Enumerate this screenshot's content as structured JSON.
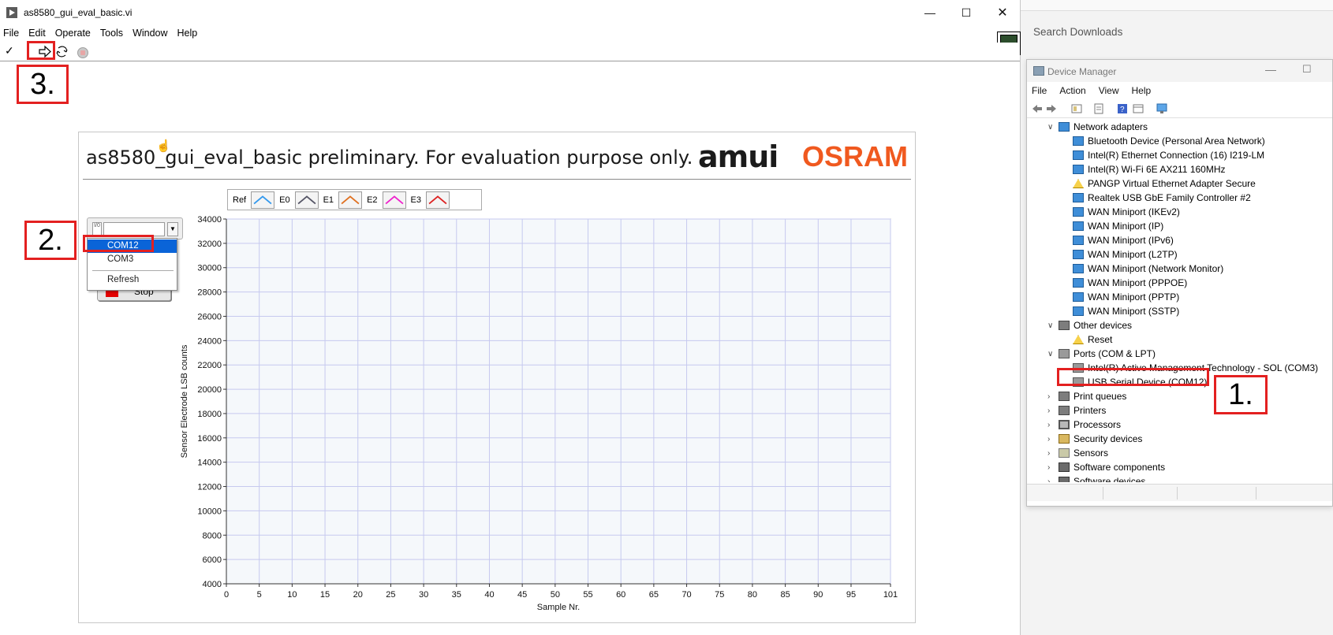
{
  "labview": {
    "title": "as8580_gui_eval_basic.vi",
    "menu": [
      "File",
      "Edit",
      "Operate",
      "Tools",
      "Window",
      "Help"
    ],
    "vi_icon_number": "1",
    "panel_title": "as8580_gui_eval_basic preliminary. For evaluation purpose only.",
    "logo_ams": "amui",
    "logo_osram": "OSRAM",
    "legend": [
      {
        "label": "Ref",
        "color": "#3399ee"
      },
      {
        "label": "E0",
        "color": "#555566"
      },
      {
        "label": "E1",
        "color": "#e07020"
      },
      {
        "label": "E2",
        "color": "#ee22cc"
      },
      {
        "label": "E3",
        "color": "#dd2222"
      }
    ],
    "combo_prefix": "I/0",
    "dropdown": {
      "items": [
        "COM12",
        "COM3"
      ],
      "selected": "COM12",
      "refresh": "Refresh"
    },
    "stop_label": "Stop"
  },
  "annotations": {
    "step1": "1.",
    "step2": "2.",
    "step3": "3."
  },
  "chart_data": {
    "type": "line",
    "title": "",
    "xlabel": "Sample Nr.",
    "ylabel": "Sensor Electrode LSB counts",
    "x_ticks": [
      0,
      5,
      10,
      15,
      20,
      25,
      30,
      35,
      40,
      45,
      50,
      55,
      60,
      65,
      70,
      75,
      80,
      85,
      90,
      95,
      101
    ],
    "y_ticks": [
      4000,
      6000,
      8000,
      10000,
      12000,
      14000,
      16000,
      18000,
      20000,
      22000,
      24000,
      26000,
      28000,
      30000,
      32000,
      34000
    ],
    "xlim": [
      0,
      101
    ],
    "ylim": [
      4000,
      34000
    ],
    "grid": true,
    "series": []
  },
  "downloads": {
    "search_placeholder": "Search Downloads"
  },
  "device_manager": {
    "title": "Device Manager",
    "menu": [
      "File",
      "Action",
      "View",
      "Help"
    ],
    "tree": [
      {
        "level": 0,
        "expanded": true,
        "icon": "network-icon",
        "label": "Network adapters"
      },
      {
        "level": 1,
        "icon": "network-icon",
        "label": "Bluetooth Device (Personal Area Network)"
      },
      {
        "level": 1,
        "icon": "network-icon",
        "label": "Intel(R) Ethernet Connection (16) I219-LM"
      },
      {
        "level": 1,
        "icon": "network-icon",
        "label": "Intel(R) Wi-Fi 6E AX211 160MHz"
      },
      {
        "level": 1,
        "icon": "warning-icon",
        "label": "PANGP Virtual Ethernet Adapter Secure"
      },
      {
        "level": 1,
        "icon": "network-icon",
        "label": "Realtek USB GbE Family Controller #2"
      },
      {
        "level": 1,
        "icon": "network-icon",
        "label": "WAN Miniport (IKEv2)"
      },
      {
        "level": 1,
        "icon": "network-icon",
        "label": "WAN Miniport (IP)"
      },
      {
        "level": 1,
        "icon": "network-icon",
        "label": "WAN Miniport (IPv6)"
      },
      {
        "level": 1,
        "icon": "network-icon",
        "label": "WAN Miniport (L2TP)"
      },
      {
        "level": 1,
        "icon": "network-icon",
        "label": "WAN Miniport (Network Monitor)"
      },
      {
        "level": 1,
        "icon": "network-icon",
        "label": "WAN Miniport (PPPOE)"
      },
      {
        "level": 1,
        "icon": "network-icon",
        "label": "WAN Miniport (PPTP)"
      },
      {
        "level": 1,
        "icon": "network-icon",
        "label": "WAN Miniport (SSTP)"
      },
      {
        "level": 0,
        "expanded": true,
        "icon": "other-device-icon",
        "label": "Other devices"
      },
      {
        "level": 1,
        "icon": "warning-icon",
        "label": "Reset"
      },
      {
        "level": 0,
        "expanded": true,
        "icon": "port-icon",
        "label": "Ports (COM & LPT)"
      },
      {
        "level": 1,
        "icon": "port-icon",
        "label": "Intel(R) Active Management Technology - SOL (COM3)"
      },
      {
        "level": 1,
        "icon": "port-icon",
        "label": "USB Serial Device (COM12)"
      },
      {
        "level": 0,
        "expanded": false,
        "icon": "printer-icon",
        "label": "Print queues"
      },
      {
        "level": 0,
        "expanded": false,
        "icon": "printer-icon",
        "label": "Printers"
      },
      {
        "level": 0,
        "expanded": false,
        "icon": "processor-icon",
        "label": "Processors"
      },
      {
        "level": 0,
        "expanded": false,
        "icon": "security-icon",
        "label": "Security devices"
      },
      {
        "level": 0,
        "expanded": false,
        "icon": "sensor-icon",
        "label": "Sensors"
      },
      {
        "level": 0,
        "expanded": false,
        "icon": "software-icon",
        "label": "Software components"
      },
      {
        "level": 0,
        "expanded": false,
        "icon": "software-icon",
        "label": "Software devices"
      }
    ]
  }
}
